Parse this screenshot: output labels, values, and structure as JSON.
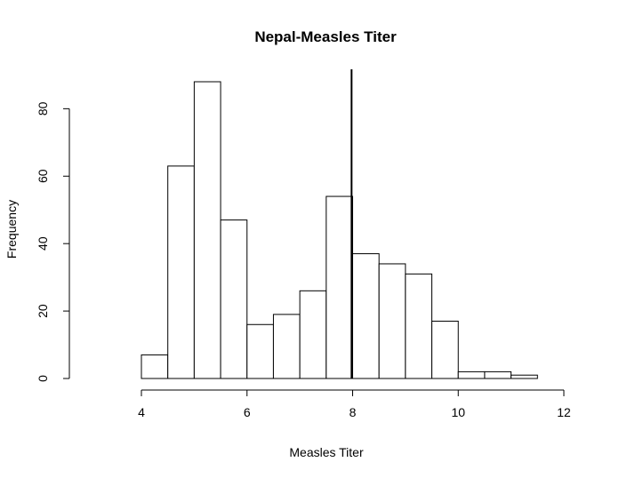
{
  "chart_data": {
    "type": "bar",
    "subtype": "histogram",
    "title": "Nepal-Measles Titer",
    "xlabel": "Measles Titer",
    "ylabel": "Frequency",
    "bin_edges": [
      4,
      4.5,
      5,
      5.5,
      6,
      6.5,
      7,
      7.5,
      8,
      8.5,
      9,
      9.5,
      10,
      10.5,
      11,
      11.5
    ],
    "values": [
      7,
      63,
      88,
      47,
      16,
      19,
      26,
      54,
      37,
      34,
      31,
      17,
      2,
      2,
      1
    ],
    "xlim": [
      4,
      12
    ],
    "ylim": [
      0,
      88
    ],
    "x_ticks": [
      4,
      6,
      8,
      10,
      12
    ],
    "y_ticks": [
      0,
      20,
      40,
      60,
      80
    ],
    "reference_line_x": 7.98,
    "grid": false,
    "legend": "none",
    "colors": {
      "bar_fill": "#ffffff",
      "bar_stroke": "#000000",
      "line": "#000000"
    }
  }
}
